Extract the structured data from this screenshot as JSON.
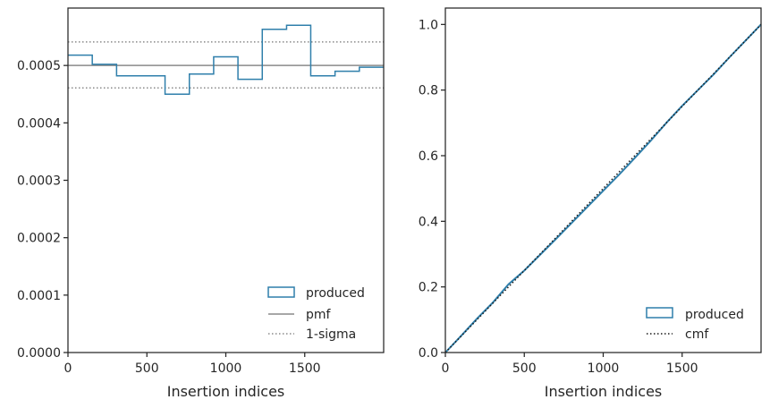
{
  "colors": {
    "produced": "#2f7fab",
    "reference": "#8a8a8a",
    "cmf": "#1a1a1a",
    "axes": "#262626"
  },
  "chart_data": [
    {
      "type": "histogram",
      "xlabel": "Insertion indices",
      "ylabel": "",
      "xlim": [
        0,
        2000
      ],
      "ylim": [
        0,
        0.0006
      ],
      "xticks": [
        0,
        500,
        1000,
        1500
      ],
      "xtick_labels": [
        "0",
        "500",
        "1000",
        "1500"
      ],
      "yticks": [
        0,
        0.0001,
        0.0002,
        0.0003,
        0.0004,
        0.0005
      ],
      "ytick_labels": [
        "0.0000",
        "0.0001",
        "0.0002",
        "0.0003",
        "0.0004",
        "0.0005"
      ],
      "legend_position": "lower-right",
      "bin_edges": [
        0,
        154,
        308,
        462,
        615,
        769,
        923,
        1077,
        1231,
        1385,
        1538,
        1692,
        1846,
        2000
      ],
      "values": [
        0.000518,
        0.000502,
        0.000482,
        0.000482,
        0.00045,
        0.000485,
        0.000515,
        0.000476,
        0.000563,
        0.00057,
        0.000482,
        0.00049,
        0.000497
      ],
      "reference_lines": [
        {
          "name": "pmf",
          "y": 0.0005,
          "style": "solid"
        },
        {
          "name": "1-sigma",
          "y": 0.000541,
          "style": "dotted"
        },
        {
          "name": "1-sigma",
          "y": 0.000461,
          "style": "dotted"
        }
      ],
      "legend": [
        "produced",
        "pmf",
        "1-sigma"
      ]
    },
    {
      "type": "line",
      "xlabel": "Insertion indices",
      "ylabel": "",
      "xlim": [
        0,
        2000
      ],
      "ylim": [
        0,
        1.05
      ],
      "xticks": [
        0,
        500,
        1000,
        1500
      ],
      "xtick_labels": [
        "0",
        "500",
        "1000",
        "1500"
      ],
      "yticks": [
        0,
        0.2,
        0.4,
        0.6,
        0.8,
        1.0
      ],
      "ytick_labels": [
        "0.0",
        "0.2",
        "0.4",
        "0.6",
        "0.8",
        "1.0"
      ],
      "legend_position": "lower-right",
      "series": [
        {
          "name": "produced",
          "style": "solid",
          "x": [
            0,
            100,
            200,
            300,
            400,
            500,
            600,
            700,
            800,
            900,
            1000,
            1100,
            1200,
            1300,
            1400,
            1500,
            1600,
            1700,
            1800,
            1900,
            2000
          ],
          "y": [
            0,
            0.051,
            0.103,
            0.152,
            0.208,
            0.25,
            0.298,
            0.346,
            0.395,
            0.444,
            0.493,
            0.542,
            0.593,
            0.645,
            0.7,
            0.752,
            0.8,
            0.848,
            0.9,
            0.95,
            1.0
          ]
        },
        {
          "name": "cmf",
          "style": "dotted",
          "x": [
            0,
            2000
          ],
          "y": [
            0,
            1.0
          ]
        }
      ],
      "legend": [
        "produced",
        "cmf"
      ]
    }
  ]
}
